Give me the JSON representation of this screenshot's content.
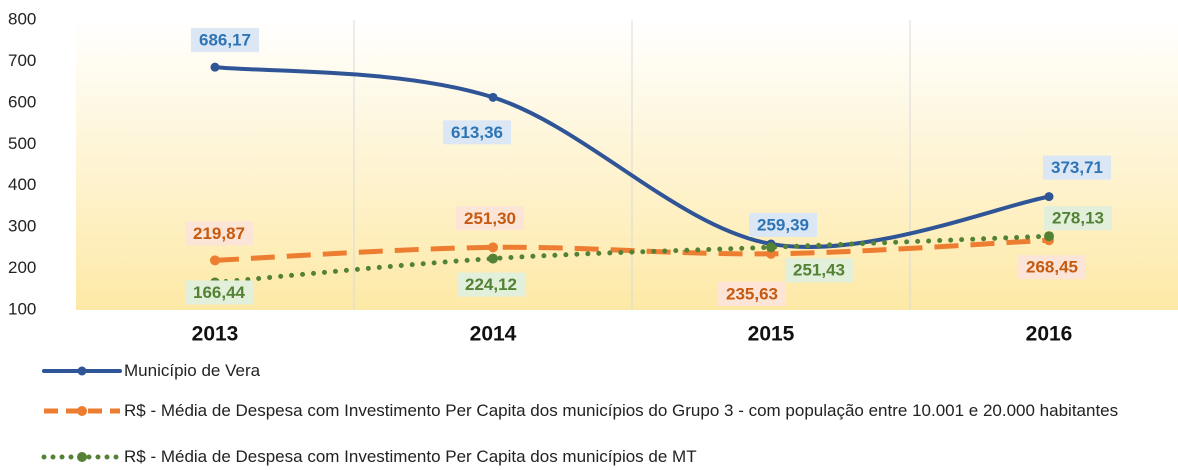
{
  "chart_data": {
    "type": "line",
    "categories": [
      "2013",
      "2014",
      "2015",
      "2016"
    ],
    "series": [
      {
        "name": "Município de Vera",
        "color": "#2f5597",
        "values": [
          686.17,
          613.36,
          259.39,
          373.71
        ],
        "value_labels": [
          "686,17",
          "613,36",
          "259,39",
          "373,71"
        ]
      },
      {
        "name": "R$ - Média de Despesa com Investimento Per Capita dos municípios do Grupo 3 - com população entre 10.001 e 20.000 habitantes",
        "color": "#ed7d31",
        "values": [
          219.87,
          251.3,
          235.63,
          268.45
        ],
        "value_labels": [
          "219,87",
          "251,30",
          "235,63",
          "268,45"
        ]
      },
      {
        "name": "R$  - Média de Despesa com Investimento Per Capita dos municípios de MT",
        "color": "#548235",
        "values": [
          166.44,
          224.12,
          251.43,
          278.13
        ],
        "value_labels": [
          "166,44",
          "224,12",
          "251,43",
          "278,13"
        ]
      }
    ],
    "ylim": [
      100,
      800
    ],
    "yticks": [
      100,
      200,
      300,
      400,
      500,
      600,
      700,
      800
    ],
    "grid": true,
    "legend": "bottom"
  }
}
